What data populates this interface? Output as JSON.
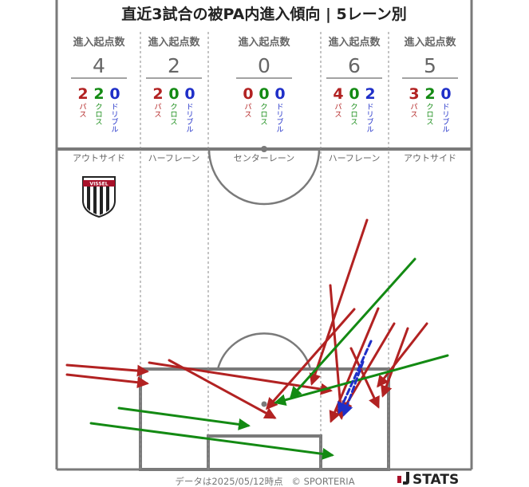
{
  "title": "直近3試合の被PA内進入傾向 | 5レーン別",
  "lanes": [
    {
      "id": "left-outside",
      "label": "アウトサイド",
      "entries_label": "進入起点数",
      "total": "4",
      "pass": "2",
      "cross": "2",
      "dribble": "0"
    },
    {
      "id": "left-half",
      "label": "ハーフレーン",
      "entries_label": "進入起点数",
      "total": "2",
      "pass": "2",
      "cross": "0",
      "dribble": "0"
    },
    {
      "id": "center",
      "label": "センターレーン",
      "entries_label": "進入起点数",
      "total": "0",
      "pass": "0",
      "cross": "0",
      "dribble": "0"
    },
    {
      "id": "right-half",
      "label": "ハーフレーン",
      "entries_label": "進入起点数",
      "total": "6",
      "pass": "4",
      "cross": "0",
      "dribble": "2"
    },
    {
      "id": "right-outside",
      "label": "アウトサイド",
      "entries_label": "進入起点数",
      "total": "5",
      "pass": "3",
      "cross": "2",
      "dribble": "0"
    }
  ],
  "legend": {
    "pass": "パス",
    "cross": "クロス",
    "dribble": "ドリブル"
  },
  "colors": {
    "pass": "#b22222",
    "cross": "#138a13",
    "dribble": "#1f2fc8",
    "line": "#7a7a7a",
    "text": "#555555"
  },
  "footer": {
    "data_date": "データは2025/05/12時点",
    "copyright": "© SPORTERIA",
    "brand": "STATS"
  },
  "team_logo": {
    "text": "VISSEL",
    "icon": "vissel-kobe-crest-icon"
  },
  "chart_data": {
    "type": "arrow-map",
    "pitch": "half-pitch, attacking toward the bottom goal",
    "series": [
      {
        "type": "pass",
        "count": 11
      },
      {
        "type": "cross",
        "count": 4
      },
      {
        "type": "dribble",
        "count": 2
      }
    ]
  }
}
